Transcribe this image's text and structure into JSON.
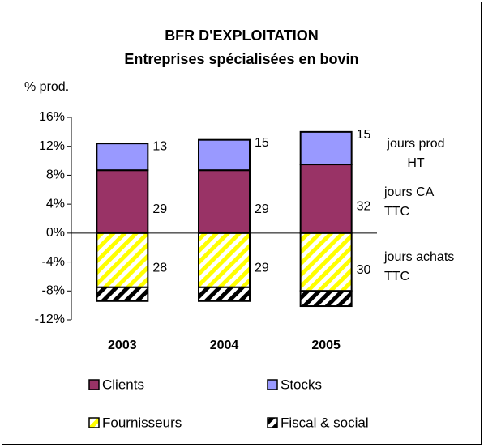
{
  "chart_data": {
    "type": "stacked_bar",
    "title": "BFR D'EXPLOITATION",
    "subtitle": "Entreprises spécialisées en bovin",
    "y_label": "% prod.",
    "categories": [
      "2003",
      "2004",
      "2005"
    ],
    "ylim": [
      -12,
      16
    ],
    "yticks": [
      {
        "value": 16,
        "label": "16%"
      },
      {
        "value": 12,
        "label": "12%"
      },
      {
        "value": 8,
        "label": "8%"
      },
      {
        "value": 4,
        "label": "4%"
      },
      {
        "value": 0,
        "label": "0%"
      },
      {
        "value": -4,
        "label": "-4%"
      },
      {
        "value": -8,
        "label": "-8%"
      },
      {
        "value": -12,
        "label": "-12%"
      }
    ],
    "series": [
      {
        "name": "Clients",
        "color": "#993366",
        "pattern": "solid",
        "values": [
          8.7,
          8.7,
          9.5
        ],
        "days": [
          29,
          29,
          32
        ],
        "days_label": "jours CA TTC"
      },
      {
        "name": "Stocks",
        "color": "#9999ff",
        "pattern": "solid",
        "values": [
          3.7,
          4.2,
          4.5
        ],
        "days": [
          13,
          15,
          15
        ],
        "days_label": "jours prod HT"
      },
      {
        "name": "Fournisseurs",
        "color": "#ffff00",
        "pattern": "hatch",
        "values": [
          -7.5,
          -7.5,
          -8.0
        ],
        "days": [
          28,
          29,
          30
        ],
        "days_label": "jours achats TTC"
      },
      {
        "name": "Fiscal & social",
        "color": "#000000",
        "pattern": "hatch",
        "values": [
          -1.9,
          -1.9,
          -2.1
        ]
      }
    ]
  }
}
